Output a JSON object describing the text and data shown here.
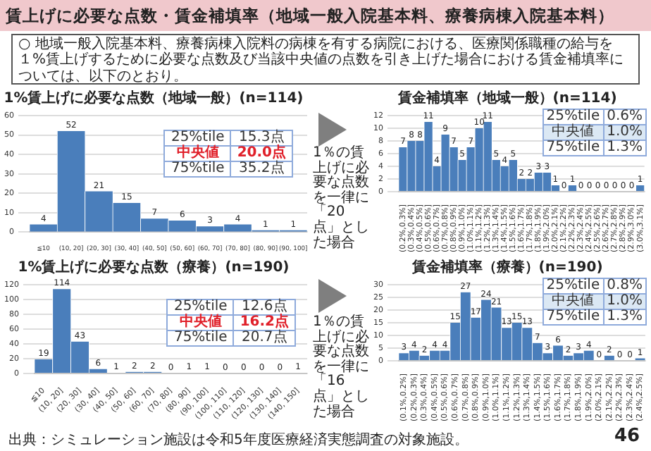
{
  "chart_data": [
    {
      "type": "bar",
      "title": "1%賃上げに必要な点数（地域一般）(n=114)",
      "categories": [
        "≦10",
        "(10, 20]",
        "(20, 30]",
        "(30, 40]",
        "(40, 50]",
        "(50, 60]",
        "(60, 70]",
        "(70, 80]",
        "(80, 90]",
        "(90, 100]"
      ],
      "values": [
        4,
        52,
        21,
        15,
        7,
        6,
        3,
        4,
        1,
        1
      ],
      "color": "#4a7ebb",
      "ylim": [
        0,
        60
      ],
      "yticks": [
        0,
        10,
        20,
        30,
        40,
        50,
        60
      ],
      "grid": "y",
      "data_labels": true,
      "annotations": [
        "25%tile",
        "15.3点",
        "中央値",
        "20.0点",
        "75%tile",
        "35.2点",
        "賃上げに必要な点数・賃金補填率（地域一般入院基本料、療養病棟入院基本料）",
        "○ 地域一般入院基本料、療養病棟入院料の病棟を有する病院における、医療関係職種の給与を１%賃上げするために必要な点数及び当該中央値の点数を引き上げた場合における賃金補填率については、以下のとおり。"
      ]
    },
    {
      "type": "bar",
      "title": "1%賃上げに必要な点数（療養）(n=190)",
      "categories": [
        "≦10",
        "(10, 20]",
        "(20, 30]",
        "(30, 40]",
        "(40, 50]",
        "(50, 60]",
        "(60, 70]",
        "(70, 80]",
        "(80, 90]",
        "(90, 100]",
        "(100, 110]",
        "(110, 120]",
        "(120, 130]",
        "(130, 140]",
        "(140, 150]"
      ],
      "values": [
        19,
        114,
        43,
        6,
        1,
        2,
        2,
        0,
        1,
        1,
        0,
        0,
        0,
        0,
        1
      ],
      "color": "#4a7ebb",
      "ylim": [
        0,
        120
      ],
      "yticks": [
        0,
        20,
        40,
        60,
        80,
        100,
        120
      ],
      "grid": "y",
      "data_labels": true,
      "annotations": [
        "25%tile",
        "12.6点",
        "中央値",
        "16.2点",
        "75%tile",
        "20.7点",
        "出典：シミュレーション施設は令和5年度医療経済実態調査の対象施設。"
      ]
    },
    {
      "type": "bar",
      "title": "賃金補填率（地域一般）(n=114)",
      "categories": [
        "(0.2%,0.3%]",
        "(0.3%,0.4%]",
        "(0.4%,0.5%]",
        "(0.5%,0.6%]",
        "(0.6%,0.7%]",
        "(0.7%,0.8%]",
        "(0.8%,0.9%]",
        "(0.9%,1.0%]",
        "(1.0%,1.1%]",
        "(1.1%,1.2%]",
        "(1.2%,1.3%]",
        "(1.3%,1.4%]",
        "(1.4%,1.5%]",
        "(1.5%,1.6%]",
        "(1.6%,1.7%]",
        "(1.7%,1.8%]",
        "(1.8%,1.9%]",
        "(1.9%,2.0%]",
        "(2.0%,2.1%]",
        "(2.1%,2.2%]",
        "(2.2%,2.3%]",
        "(2.3%,2.4%]",
        "(2.4%,2.5%]",
        "(2.5%,2.6%]",
        "(2.6%,2.7%]",
        "(2.7%,2.8%]",
        "(2.8%,2.9%]",
        "(2.9%,3.0%]",
        "(3.0%,3.1%]"
      ],
      "values": [
        7,
        8,
        8,
        11,
        4,
        9,
        7,
        5,
        7,
        10,
        11,
        5,
        4,
        5,
        2,
        2,
        3,
        3,
        1,
        0,
        1,
        0,
        0,
        0,
        0,
        0,
        0,
        0,
        1
      ],
      "color": "#4a7ebb",
      "ylim": [
        0,
        12
      ],
      "yticks": [
        0,
        2,
        4,
        6,
        8,
        10,
        12
      ],
      "grid": "y",
      "data_labels": true,
      "annotations": [
        "25%tile",
        "0.6%",
        "中央値",
        "1.0%",
        "75%tile",
        "1.3%",
        "1％の賃上げに必要な点数を一律に「20点」とした場合"
      ]
    },
    {
      "type": "bar",
      "title": "賃金補填率（療養）(n=190)",
      "categories": [
        "(0.1%,0.2%]",
        "(0.2%,0.3%]",
        "(0.3%,0.4%]",
        "(0.4%,0.5%]",
        "(0.5%,0.6%]",
        "(0.6%,0.7%]",
        "(0.7%,0.8%]",
        "(0.8%,0.9%]",
        "(0.9%,1.0%]",
        "(1.0%,1.1%]",
        "(1.1%,1.2%]",
        "(1.2%,1.3%]",
        "(1.3%,1.4%]",
        "(1.4%,1.5%]",
        "(1.5%,1.6%]",
        "(1.6%,1.7%]",
        "(1.7%,1.8%]",
        "(1.8%,1.9%]",
        "(1.9%,2.0%]",
        "(2.0%,2.1%]",
        "(2.1%,2.2%]",
        "(2.2%,2.3%]",
        "(2.3%,2.4%]",
        "(2.4%,2.5%]"
      ],
      "values": [
        3,
        4,
        2,
        4,
        4,
        15,
        27,
        17,
        24,
        21,
        13,
        15,
        13,
        7,
        3,
        6,
        2,
        3,
        4,
        0,
        2,
        0,
        0,
        1
      ],
      "color": "#4a7ebb",
      "ylim": [
        0,
        30
      ],
      "yticks": [
        0,
        5,
        10,
        15,
        20,
        25,
        30
      ],
      "grid": "y",
      "data_labels": true,
      "annotations": [
        "25%tile",
        "0.8%",
        "中央値",
        "1.0%",
        "75%tile",
        "1.3%",
        "1％の賃上げに必要な点数を一律に「16点」とした場合",
        "46"
      ]
    }
  ]
}
